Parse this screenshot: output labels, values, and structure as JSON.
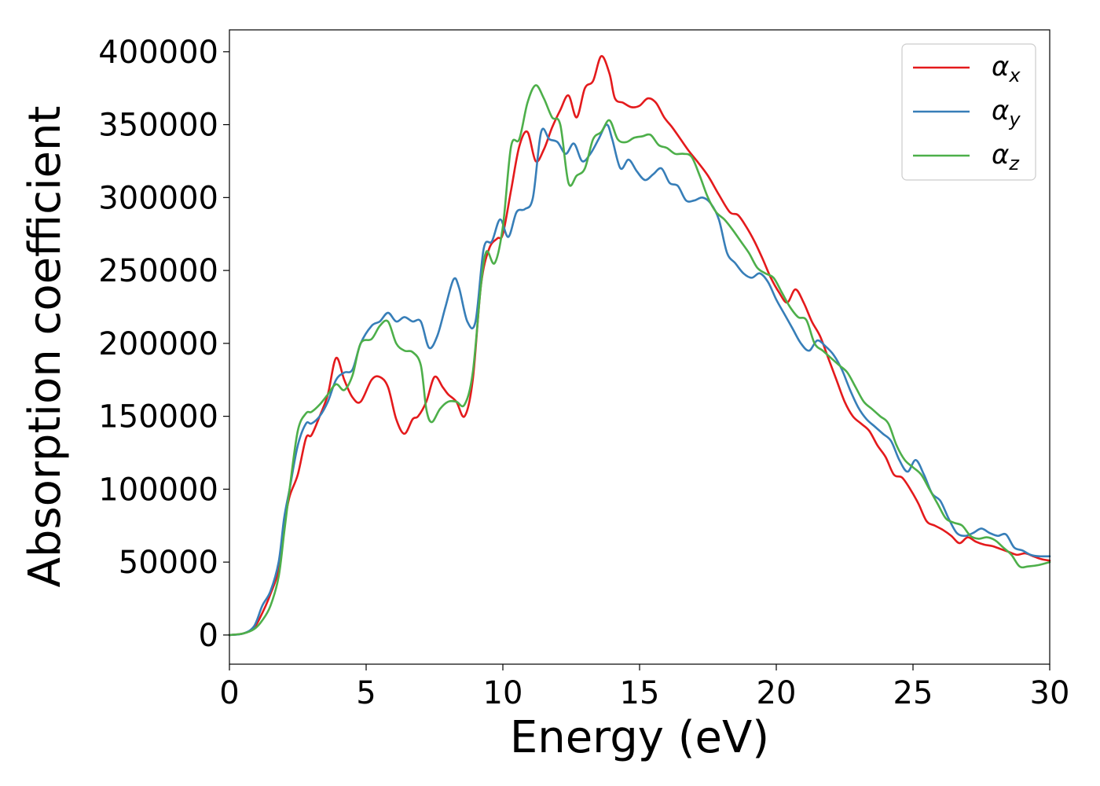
{
  "chart_data": {
    "type": "line",
    "title": "",
    "xlabel": "Energy (eV)",
    "ylabel": "Absorption coefficient",
    "xlim": [
      0,
      30
    ],
    "ylim": [
      -20000,
      415000
    ],
    "xticks": [
      0,
      5,
      10,
      15,
      20,
      25,
      30
    ],
    "xtick_labels": [
      "0",
      "5",
      "10",
      "15",
      "20",
      "25",
      "30"
    ],
    "yticks": [
      0,
      50000,
      100000,
      150000,
      200000,
      250000,
      300000,
      350000,
      400000
    ],
    "ytick_labels": [
      "0",
      "50000",
      "100000",
      "150000",
      "200000",
      "250000",
      "300000",
      "350000",
      "400000"
    ],
    "grid": false,
    "legend_position": "top-right",
    "series": [
      {
        "name": "α",
        "subscript": "x",
        "color": "#e41a1c",
        "x": [
          0,
          0.5,
          0.9,
          1.2,
          1.5,
          1.8,
          2.0,
          2.2,
          2.5,
          2.8,
          3.0,
          3.3,
          3.6,
          3.9,
          4.2,
          4.5,
          4.8,
          5.2,
          5.5,
          5.8,
          6.1,
          6.4,
          6.7,
          6.9,
          7.2,
          7.5,
          7.8,
          8.0,
          8.3,
          8.6,
          8.9,
          9.2,
          9.5,
          9.8,
          10.0,
          10.3,
          10.6,
          10.9,
          11.2,
          11.5,
          11.8,
          12.1,
          12.4,
          12.7,
          13.0,
          13.3,
          13.6,
          13.9,
          14.1,
          14.4,
          14.7,
          15.0,
          15.3,
          15.6,
          15.9,
          16.2,
          16.5,
          16.8,
          17.1,
          17.5,
          17.9,
          18.3,
          18.6,
          18.9,
          19.2,
          19.5,
          19.8,
          20.1,
          20.4,
          20.7,
          21.0,
          21.3,
          21.6,
          21.9,
          22.2,
          22.5,
          22.8,
          23.1,
          23.4,
          23.7,
          24.0,
          24.3,
          24.6,
          24.9,
          25.2,
          25.5,
          25.8,
          26.1,
          26.4,
          26.7,
          27.0,
          27.3,
          27.6,
          27.9,
          28.2,
          28.5,
          28.8,
          29.1,
          29.4,
          29.7,
          30.0
        ],
        "y": [
          0,
          1000,
          5000,
          15000,
          28000,
          45000,
          75000,
          95000,
          110000,
          135000,
          137000,
          150000,
          165000,
          190000,
          175000,
          163000,
          160000,
          175000,
          177000,
          170000,
          148000,
          138000,
          148000,
          150000,
          160000,
          177000,
          170000,
          165000,
          160000,
          150000,
          175000,
          240000,
          265000,
          272000,
          275000,
          305000,
          335000,
          345000,
          325000,
          333000,
          348000,
          360000,
          370000,
          355000,
          375000,
          380000,
          397000,
          385000,
          368000,
          365000,
          362000,
          363000,
          368000,
          365000,
          355000,
          348000,
          340000,
          332000,
          325000,
          315000,
          302000,
          290000,
          288000,
          280000,
          270000,
          258000,
          245000,
          235000,
          228000,
          237000,
          228000,
          215000,
          205000,
          190000,
          175000,
          160000,
          150000,
          145000,
          140000,
          130000,
          122000,
          110000,
          108000,
          100000,
          90000,
          78000,
          75000,
          72000,
          68000,
          63000,
          67000,
          64000,
          62000,
          61000,
          59000,
          57000,
          55000,
          56000,
          54000,
          52000,
          51000
        ]
      },
      {
        "name": "α",
        "subscript": "y",
        "color": "#377eb8",
        "x": [
          0,
          0.5,
          0.9,
          1.2,
          1.5,
          1.8,
          2.0,
          2.2,
          2.5,
          2.8,
          3.0,
          3.3,
          3.6,
          3.9,
          4.2,
          4.5,
          4.8,
          5.2,
          5.5,
          5.8,
          6.1,
          6.4,
          6.7,
          7.0,
          7.3,
          7.6,
          7.9,
          8.2,
          8.4,
          8.7,
          9.0,
          9.3,
          9.6,
          9.9,
          10.2,
          10.5,
          10.8,
          11.1,
          11.4,
          11.7,
          12.0,
          12.3,
          12.6,
          12.9,
          13.2,
          13.5,
          13.8,
          14.0,
          14.3,
          14.6,
          14.9,
          15.2,
          15.5,
          15.8,
          16.1,
          16.4,
          16.7,
          17.0,
          17.3,
          17.6,
          17.9,
          18.2,
          18.5,
          18.8,
          19.1,
          19.4,
          19.7,
          20.0,
          20.3,
          20.6,
          20.9,
          21.2,
          21.5,
          21.8,
          22.1,
          22.4,
          22.7,
          23.0,
          23.3,
          23.6,
          23.9,
          24.2,
          24.5,
          24.8,
          25.1,
          25.4,
          25.7,
          26.0,
          26.3,
          26.6,
          26.9,
          27.2,
          27.5,
          27.8,
          28.1,
          28.4,
          28.7,
          29.0,
          29.3,
          29.6,
          30.0
        ],
        "y": [
          0,
          1000,
          6000,
          20000,
          30000,
          50000,
          80000,
          100000,
          130000,
          145000,
          145000,
          150000,
          160000,
          175000,
          180000,
          182000,
          200000,
          212000,
          215000,
          221000,
          215000,
          218000,
          215000,
          215000,
          197000,
          205000,
          225000,
          244000,
          238000,
          215000,
          215000,
          265000,
          270000,
          285000,
          273000,
          290000,
          292000,
          300000,
          345000,
          340000,
          338000,
          330000,
          337000,
          325000,
          330000,
          340000,
          350000,
          340000,
          320000,
          326000,
          318000,
          312000,
          316000,
          320000,
          310000,
          308000,
          298000,
          298000,
          300000,
          296000,
          285000,
          262000,
          255000,
          248000,
          245000,
          248000,
          242000,
          230000,
          220000,
          210000,
          200000,
          195000,
          202000,
          198000,
          192000,
          182000,
          168000,
          156000,
          148000,
          143000,
          138000,
          133000,
          120000,
          112000,
          120000,
          110000,
          97000,
          92000,
          80000,
          70000,
          68000,
          70000,
          73000,
          70000,
          68000,
          69000,
          60000,
          58000,
          55000,
          54000,
          54000
        ]
      },
      {
        "name": "α",
        "subscript": "z",
        "color": "#4daf4a",
        "x": [
          0,
          0.5,
          0.9,
          1.2,
          1.5,
          1.8,
          2.0,
          2.2,
          2.5,
          2.8,
          3.0,
          3.3,
          3.6,
          3.9,
          4.2,
          4.5,
          4.8,
          5.2,
          5.5,
          5.8,
          6.1,
          6.4,
          6.7,
          7.0,
          7.2,
          7.4,
          7.7,
          8.0,
          8.3,
          8.6,
          8.9,
          9.2,
          9.4,
          9.7,
          10.0,
          10.3,
          10.6,
          10.9,
          11.2,
          11.5,
          11.8,
          12.1,
          12.4,
          12.7,
          13.0,
          13.3,
          13.6,
          13.9,
          14.2,
          14.5,
          14.8,
          15.1,
          15.4,
          15.7,
          16.0,
          16.3,
          16.6,
          16.9,
          17.2,
          17.5,
          17.8,
          18.1,
          18.4,
          18.7,
          19.0,
          19.3,
          19.6,
          19.9,
          20.2,
          20.5,
          20.8,
          21.1,
          21.4,
          21.7,
          22.0,
          22.3,
          22.6,
          22.9,
          23.2,
          23.5,
          23.8,
          24.1,
          24.4,
          24.7,
          25.0,
          25.3,
          25.6,
          25.9,
          26.2,
          26.5,
          26.8,
          27.1,
          27.4,
          27.7,
          28.0,
          28.3,
          28.6,
          28.9,
          29.2,
          29.6,
          30.0
        ],
        "y": [
          0,
          1000,
          4000,
          10000,
          20000,
          40000,
          70000,
          100000,
          140000,
          152000,
          153000,
          158000,
          165000,
          172000,
          168000,
          178000,
          200000,
          203000,
          212000,
          215000,
          200000,
          195000,
          194000,
          185000,
          155000,
          146000,
          155000,
          160000,
          160000,
          158000,
          180000,
          240000,
          263000,
          255000,
          280000,
          335000,
          340000,
          365000,
          377000,
          368000,
          355000,
          350000,
          310000,
          315000,
          320000,
          340000,
          345000,
          353000,
          340000,
          338000,
          341000,
          342000,
          343000,
          336000,
          334000,
          330000,
          330000,
          328000,
          315000,
          300000,
          290000,
          285000,
          278000,
          270000,
          262000,
          252000,
          248000,
          245000,
          235000,
          225000,
          218000,
          216000,
          200000,
          195000,
          190000,
          185000,
          180000,
          170000,
          160000,
          155000,
          150000,
          145000,
          130000,
          120000,
          115000,
          110000,
          100000,
          90000,
          80000,
          77000,
          75000,
          68000,
          66000,
          67000,
          65000,
          60000,
          55000,
          47000,
          47000,
          48000,
          50000
        ]
      }
    ]
  }
}
